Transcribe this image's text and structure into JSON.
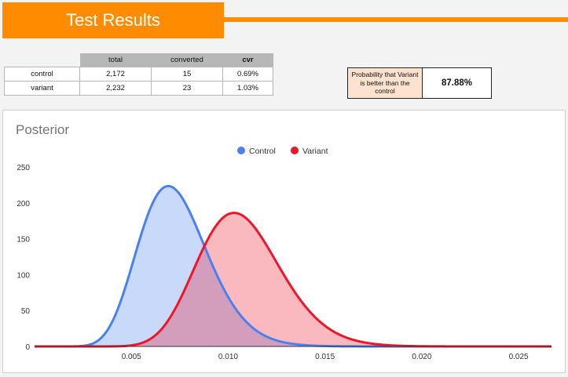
{
  "header": {
    "title": "Test Results"
  },
  "stats_table": {
    "columns": [
      "total",
      "converted",
      "cvr"
    ],
    "rows": [
      {
        "label": "control",
        "total": "2,172",
        "converted": "15",
        "cvr": "0.69%"
      },
      {
        "label": "variant",
        "total": "2,232",
        "converted": "23",
        "cvr": "1.03%"
      }
    ]
  },
  "probability": {
    "label": "Probability that Variant is better than the control",
    "value": "87.88%"
  },
  "colors": {
    "accent": "#ff8c00",
    "control": "#4a80f0",
    "variant": "#f0162a"
  },
  "chart_data": {
    "type": "area",
    "title": "Posterior",
    "xlabel": "",
    "ylabel": "",
    "xlim": [
      0.0,
      0.0267
    ],
    "ylim": [
      0,
      250
    ],
    "xticks": [
      0.005,
      0.01,
      0.015,
      0.02,
      0.025
    ],
    "xtick_labels": [
      "0.005",
      "0.010",
      "0.015",
      "0.020",
      "0.025"
    ],
    "yticks": [
      0,
      50,
      100,
      150,
      200,
      250
    ],
    "ytick_labels": [
      "0",
      "50",
      "100",
      "150",
      "200",
      "250"
    ],
    "legend_position": "top-center",
    "grid": false,
    "series": [
      {
        "name": "Control",
        "color": "#4a80f0",
        "distribution": "beta",
        "alpha": 16,
        "beta": 2158
      },
      {
        "name": "Variant",
        "color": "#f0162a",
        "distribution": "beta",
        "alpha": 24,
        "beta": 2210
      }
    ]
  }
}
